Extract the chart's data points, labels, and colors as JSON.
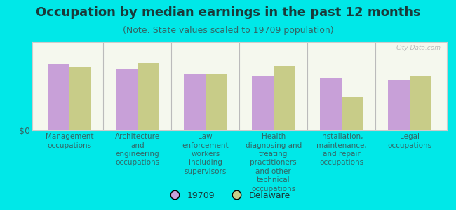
{
  "title": "Occupation by median earnings in the past 12 months",
  "subtitle": "(Note: State values scaled to 19709 population)",
  "background_color": "#00e8e8",
  "plot_bg_top": "#e8f0d8",
  "plot_bg_bottom": "#f5f8ee",
  "categories": [
    "Management\noccupations",
    "Architecture\nand\nengineering\noccupations",
    "Law\nenforcement\nworkers\nincluding\nsupervisors",
    "Health\ndiagnosing and\ntreating\npractitioners\nand other\ntechnical\noccupations",
    "Installation,\nmaintenance,\nand repair\noccupations",
    "Legal\noccupations"
  ],
  "values_19709": [
    0.78,
    0.73,
    0.67,
    0.64,
    0.62,
    0.6
  ],
  "values_delaware": [
    0.75,
    0.8,
    0.67,
    0.77,
    0.4,
    0.64
  ],
  "color_19709": "#c8a0d8",
  "color_delaware": "#c8cc88",
  "ylabel": "$0",
  "legend_19709": "19709",
  "legend_delaware": "Delaware",
  "bar_width": 0.32,
  "title_fontsize": 13,
  "subtitle_fontsize": 9,
  "tick_fontsize": 7.5,
  "legend_fontsize": 9,
  "title_color": "#1a3a3a",
  "subtitle_color": "#336666",
  "tick_color": "#336666",
  "watermark": "City-Data.com"
}
